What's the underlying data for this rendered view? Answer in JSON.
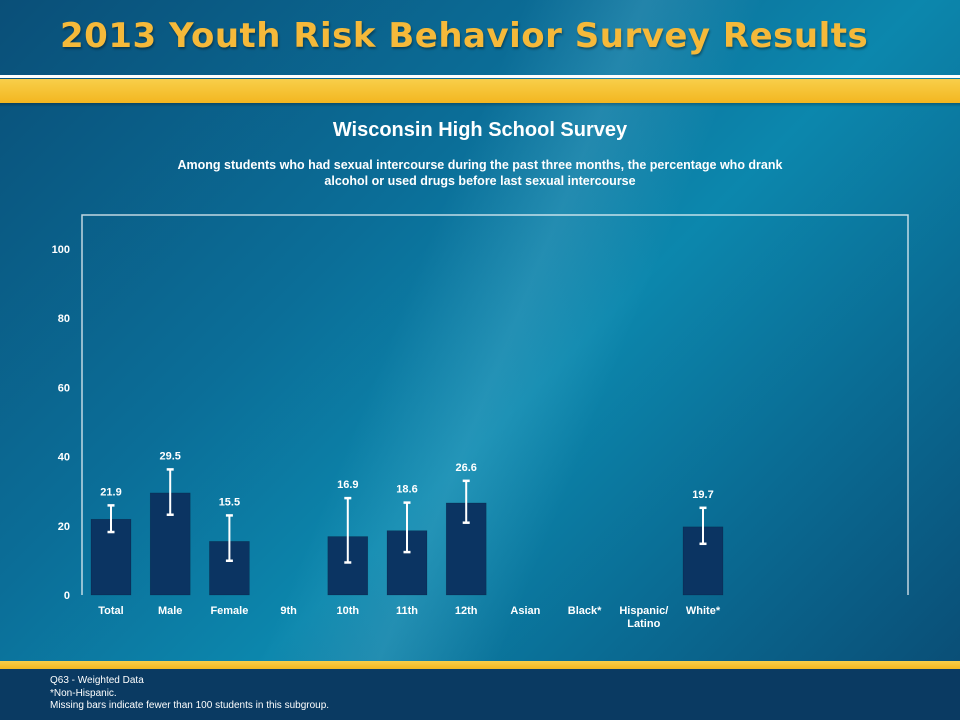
{
  "header": {
    "title": "2013 Youth Risk Behavior Survey Results"
  },
  "footer": {
    "lines": [
      "Q63 - Weighted Data",
      "*Non-Hispanic.",
      "Missing bars indicate fewer than 100 students in this subgroup."
    ]
  },
  "colors": {
    "bar": "#0b3462",
    "accent": "#f5b93a",
    "axis": "#ffffff"
  },
  "chart_data": {
    "type": "bar",
    "title": "Wisconsin High School Survey",
    "subtitle": "Among students who had sexual intercourse during the past three months, the percentage who drank alcohol or used drugs before last sexual intercourse",
    "xlabel": "",
    "ylabel": "",
    "ylim": [
      0,
      100
    ],
    "yticks": [
      0,
      20,
      40,
      60,
      80,
      100
    ],
    "grid": false,
    "categories": [
      [
        "Total"
      ],
      [
        "Male"
      ],
      [
        "Female"
      ],
      [
        "9th"
      ],
      [
        "10th"
      ],
      [
        "11th"
      ],
      [
        "12th"
      ],
      [
        "Asian"
      ],
      [
        "Black*"
      ],
      [
        "Hispanic/",
        "Latino"
      ],
      [
        "White*"
      ]
    ],
    "gaps_after": [
      0,
      2,
      6
    ],
    "values": [
      21.9,
      29.5,
      15.5,
      null,
      16.9,
      18.6,
      26.6,
      null,
      null,
      null,
      19.7
    ],
    "value_labels": [
      "21.9",
      "29.5",
      "15.5",
      "",
      "16.9",
      "18.6",
      "26.6",
      "",
      "",
      "",
      "19.7"
    ],
    "ci_lower": [
      18.2,
      23.2,
      9.9,
      null,
      9.4,
      12.4,
      20.9,
      null,
      null,
      null,
      14.8
    ],
    "ci_upper": [
      25.9,
      36.3,
      23.0,
      null,
      28.0,
      26.7,
      33.0,
      null,
      null,
      null,
      25.2
    ]
  }
}
